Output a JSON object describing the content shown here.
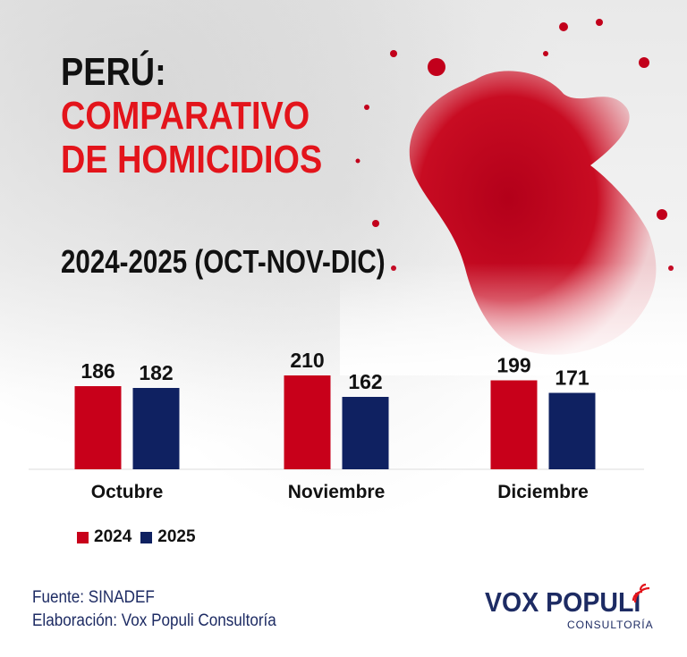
{
  "title": {
    "line1": "PERÚ:",
    "line2": "COMPARATIVO",
    "line3": "DE HOMICIDIOS",
    "subtitle": "2024-2025 (OCT-NOV-DIC)"
  },
  "chart_data": {
    "type": "bar",
    "categories": [
      "Octubre",
      "Noviembre",
      "Diciembre"
    ],
    "series": [
      {
        "name": "2024",
        "values": [
          186,
          210,
          199
        ],
        "color": "#c8001a"
      },
      {
        "name": "2025",
        "values": [
          182,
          162,
          171
        ],
        "color": "#0f2161"
      }
    ],
    "ylim": [
      0,
      220
    ],
    "grid": false,
    "legend": "bottom-left"
  },
  "footer": {
    "source": "Fuente: SINADEF",
    "elaboration": "Elaboración: Vox Populi Consultoría"
  },
  "brand": {
    "name": "VOX POPULI",
    "sub": "CONSULTORÍA",
    "icon": "signal-waves-icon"
  },
  "colors": {
    "accent_red": "#e3141b",
    "navy": "#1d2b63"
  }
}
